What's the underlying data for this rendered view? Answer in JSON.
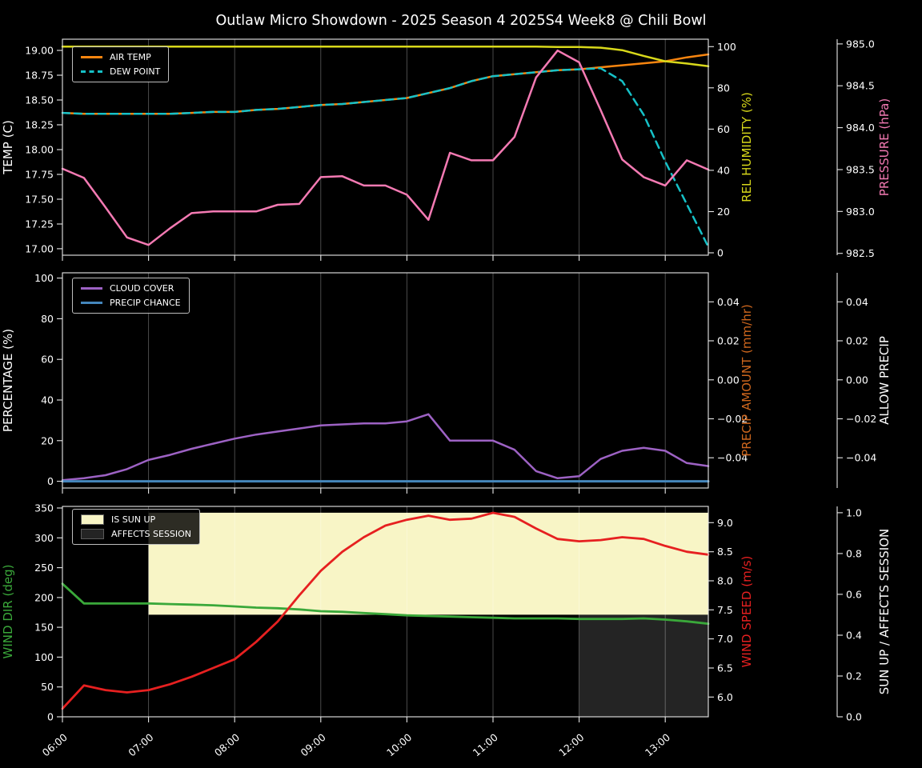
{
  "title": "Outlaw Micro Showdown - 2025 Season 4 2025S4 Week8 @ Chili Bowl",
  "x_hours": [
    6.0,
    6.25,
    6.5,
    6.75,
    7.0,
    7.25,
    7.5,
    7.75,
    8.0,
    8.25,
    8.5,
    8.75,
    9.0,
    9.25,
    9.5,
    9.75,
    10.0,
    10.25,
    10.5,
    10.75,
    11.0,
    11.25,
    11.5,
    11.75,
    12.0,
    12.25,
    12.5,
    12.75,
    13.0,
    13.25,
    13.5
  ],
  "x_axis": {
    "tick_hours": [
      6,
      7,
      8,
      9,
      10,
      11,
      12,
      13
    ],
    "tick_labels": [
      "06:00",
      "07:00",
      "08:00",
      "09:00",
      "10:00",
      "11:00",
      "12:00",
      "13:00"
    ]
  },
  "colors": {
    "background": "#000000",
    "text": "#ffffff",
    "air_temp": "#f8850f",
    "dew_point": "#16c1c7",
    "rel_humidity": "#d8d81a",
    "pressure": "#f47ab3",
    "cloud_cover": "#9d62c4",
    "precip_chance": "#4486bc",
    "precip_amount": "#cd661d",
    "wind_dir": "#3aa83a",
    "wind_speed": "#e62020",
    "sun_up_fill": "#f8f5c6",
    "affects_session_fill": "#242424"
  },
  "chart_data": [
    {
      "type": "line",
      "panel": "temperature",
      "axes": {
        "left": {
          "label": "TEMP (C)",
          "color": "#ffffff",
          "range": [
            16.935,
            19.113
          ],
          "ticks": [
            17.0,
            17.25,
            17.5,
            17.75,
            18.0,
            18.25,
            18.5,
            18.75,
            19.0
          ],
          "tick_labels": [
            "17.00",
            "17.25",
            "17.50",
            "17.75",
            "18.00",
            "18.25",
            "18.50",
            "18.75",
            "19.00"
          ]
        },
        "right_inner": {
          "label": "REL HUMIDITY (%)",
          "color": "#d8d81a",
          "range": [
            -1.16,
            103.6
          ],
          "ticks": [
            0,
            20,
            40,
            60,
            80,
            100
          ],
          "tick_labels": [
            "0",
            "20",
            "40",
            "60",
            "80",
            "100"
          ]
        },
        "right_outer": {
          "label": "PRESSURE (hPa)",
          "color": "#f47ab3",
          "range": [
            982.478,
            985.056
          ],
          "ticks": [
            982.5,
            983.0,
            983.5,
            984.0,
            984.5,
            985.0
          ],
          "tick_labels": [
            "982.5",
            "983.0",
            "983.5",
            "984.0",
            "984.5",
            "985.0"
          ]
        }
      },
      "series": [
        {
          "name": "AIR TEMP",
          "axis": "left",
          "color": "#f8850f",
          "width": 2.5,
          "dash": false,
          "values": [
            18.37,
            18.36,
            18.36,
            18.36,
            18.36,
            18.36,
            18.37,
            18.38,
            18.38,
            18.4,
            18.41,
            18.43,
            18.45,
            18.46,
            18.48,
            18.5,
            18.52,
            18.57,
            18.62,
            18.69,
            18.74,
            18.76,
            18.78,
            18.8,
            18.81,
            18.83,
            18.85,
            18.87,
            18.89,
            18.93,
            18.96
          ]
        },
        {
          "name": "DEW POINT",
          "axis": "left",
          "color": "#16c1c7",
          "width": 2.5,
          "dash": true,
          "values": [
            18.37,
            18.36,
            18.36,
            18.36,
            18.36,
            18.36,
            18.37,
            18.38,
            18.38,
            18.4,
            18.41,
            18.43,
            18.45,
            18.46,
            18.48,
            18.5,
            18.52,
            18.57,
            18.62,
            18.69,
            18.74,
            18.76,
            18.78,
            18.8,
            18.81,
            18.82,
            18.69,
            18.35,
            17.88,
            17.45,
            17.02
          ]
        },
        {
          "name": "REL HUMIDITY",
          "axis": "right_inner",
          "color": "#d8d81a",
          "width": 2.5,
          "dash": false,
          "values": [
            100,
            100,
            100,
            100,
            100,
            100,
            100,
            100,
            100,
            100,
            100,
            100,
            100,
            100,
            100,
            100,
            100,
            100,
            100,
            100,
            100,
            100,
            100,
            99.8,
            99.8,
            99.5,
            98.3,
            95.5,
            92.9,
            91.8,
            90.5
          ]
        },
        {
          "name": "PRESSURE",
          "axis": "right_outer",
          "color": "#f47ab3",
          "width": 2.5,
          "dash": false,
          "values": [
            983.51,
            983.4,
            983.05,
            982.69,
            982.6,
            982.8,
            982.98,
            983.0,
            983.0,
            983.0,
            983.08,
            983.09,
            983.41,
            983.42,
            983.31,
            983.31,
            983.2,
            982.9,
            983.7,
            983.61,
            983.61,
            983.89,
            984.6,
            984.92,
            984.78,
            984.21,
            983.62,
            983.41,
            983.31,
            983.61,
            983.5
          ]
        }
      ],
      "legend": [
        {
          "label": "AIR TEMP",
          "swatch": "line",
          "color": "#f8850f"
        },
        {
          "label": "DEW POINT",
          "swatch": "dashed-line",
          "color": "#16c1c7"
        }
      ]
    },
    {
      "type": "line",
      "panel": "precipitation",
      "axes": {
        "left": {
          "label": "PERCENTAGE (%)",
          "color": "#ffffff",
          "range": [
            -3.3,
            102.6
          ],
          "ticks": [
            0,
            20,
            40,
            60,
            80,
            100
          ],
          "tick_labels": [
            "0",
            "20",
            "40",
            "60",
            "80",
            "100"
          ]
        },
        "right_inner": {
          "label": "PRECIP AMOUNT (mm/hr)",
          "color": "#cd661d",
          "range": [
            -0.0555,
            0.0549
          ],
          "ticks": [
            -0.04,
            -0.02,
            0.0,
            0.02,
            0.04
          ],
          "tick_labels": [
            "−0.04",
            "−0.02",
            "0.00",
            "0.02",
            "0.04"
          ]
        },
        "right_outer": {
          "label": "ALLOW PRECIP",
          "color": "#ffffff",
          "range": [
            -0.0555,
            0.0549
          ],
          "ticks": [
            -0.04,
            -0.02,
            0.0,
            0.02,
            0.04
          ],
          "tick_labels": [
            "−0.04",
            "−0.02",
            "0.00",
            "0.02",
            "0.04"
          ]
        }
      },
      "series": [
        {
          "name": "CLOUD COVER",
          "axis": "left",
          "color": "#9d62c4",
          "width": 2.5,
          "dash": false,
          "values": [
            0.5,
            1.5,
            3,
            6,
            10.5,
            13,
            16,
            18.5,
            21,
            23,
            24.5,
            26,
            27.5,
            28,
            28.5,
            28.5,
            29.5,
            33,
            20,
            20,
            20,
            15.5,
            5,
            1.5,
            2.5,
            11,
            15,
            16.5,
            15,
            9,
            7.5
          ]
        },
        {
          "name": "PRECIP CHANCE",
          "axis": "left",
          "color": "#4486bc",
          "width": 3,
          "dash": false,
          "values": [
            0,
            0,
            0,
            0,
            0,
            0,
            0,
            0,
            0,
            0,
            0,
            0,
            0,
            0,
            0,
            0,
            0,
            0,
            0,
            0,
            0,
            0,
            0,
            0,
            0,
            0,
            0,
            0,
            0,
            0,
            0
          ]
        }
      ],
      "legend": [
        {
          "label": "CLOUD COVER",
          "swatch": "line",
          "color": "#9d62c4"
        },
        {
          "label": "PRECIP CHANCE",
          "swatch": "line",
          "color": "#4486bc"
        }
      ]
    },
    {
      "type": "line",
      "panel": "wind",
      "axes": {
        "left": {
          "label": "WIND DIR (deg)",
          "color": "#3aa83a",
          "range": [
            0,
            352.7
          ],
          "ticks": [
            0,
            50,
            100,
            150,
            200,
            250,
            300,
            350
          ],
          "tick_labels": [
            "0",
            "50",
            "100",
            "150",
            "200",
            "250",
            "300",
            "350"
          ]
        },
        "right_inner": {
          "label": "WIND SPEED (m/s)",
          "color": "#e62020",
          "range": [
            5.66,
            9.28
          ],
          "ticks": [
            6.0,
            6.5,
            7.0,
            7.5,
            8.0,
            8.5,
            9.0
          ],
          "tick_labels": [
            "6.0",
            "6.5",
            "7.0",
            "7.5",
            "8.0",
            "8.5",
            "9.0"
          ]
        },
        "right_outer": {
          "label": "SUN UP / AFFECTS SESSION",
          "color": "#ffffff",
          "range": [
            0,
            1.031
          ],
          "ticks": [
            0.0,
            0.2,
            0.4,
            0.6,
            0.8,
            1.0
          ],
          "tick_labels": [
            "0.0",
            "0.2",
            "0.4",
            "0.6",
            "0.8",
            "1.0"
          ]
        }
      },
      "fills": [
        {
          "name": "IS SUN UP",
          "axis": "right_outer",
          "x_from": 7.0,
          "x_to": 13.5,
          "y_from": 0.5,
          "y_to": 1.0,
          "color": "#f8f5c6"
        },
        {
          "name": "AFFECTS SESSION",
          "axis": "right_outer",
          "x_from": 12.0,
          "x_to": 13.5,
          "y_from": 0.0,
          "y_to": 0.5,
          "color": "#242424"
        }
      ],
      "series": [
        {
          "name": "WIND DIR",
          "axis": "left",
          "color": "#3aa83a",
          "width": 2.8,
          "dash": false,
          "values": [
            223,
            190,
            190,
            190,
            190,
            189,
            188,
            187,
            185,
            183,
            182,
            180,
            177,
            176,
            174,
            172,
            170,
            169,
            168,
            167,
            166,
            165,
            165,
            165,
            164,
            164,
            164,
            165,
            163,
            160,
            156
          ]
        },
        {
          "name": "WIND SPEED",
          "axis": "right_inner",
          "color": "#e62020",
          "width": 2.8,
          "dash": false,
          "values": [
            5.8,
            6.2,
            6.12,
            6.08,
            6.12,
            6.22,
            6.35,
            6.5,
            6.65,
            6.95,
            7.3,
            7.75,
            8.17,
            8.5,
            8.75,
            8.95,
            9.05,
            9.12,
            9.05,
            9.07,
            9.17,
            9.1,
            8.9,
            8.72,
            8.68,
            8.7,
            8.75,
            8.72,
            8.6,
            8.5,
            8.45
          ]
        }
      ],
      "legend": [
        {
          "label": "IS SUN UP",
          "swatch": "patch",
          "color": "#f8f5c6"
        },
        {
          "label": "AFFECTS SESSION",
          "swatch": "patch",
          "color": "#242424"
        }
      ]
    }
  ]
}
